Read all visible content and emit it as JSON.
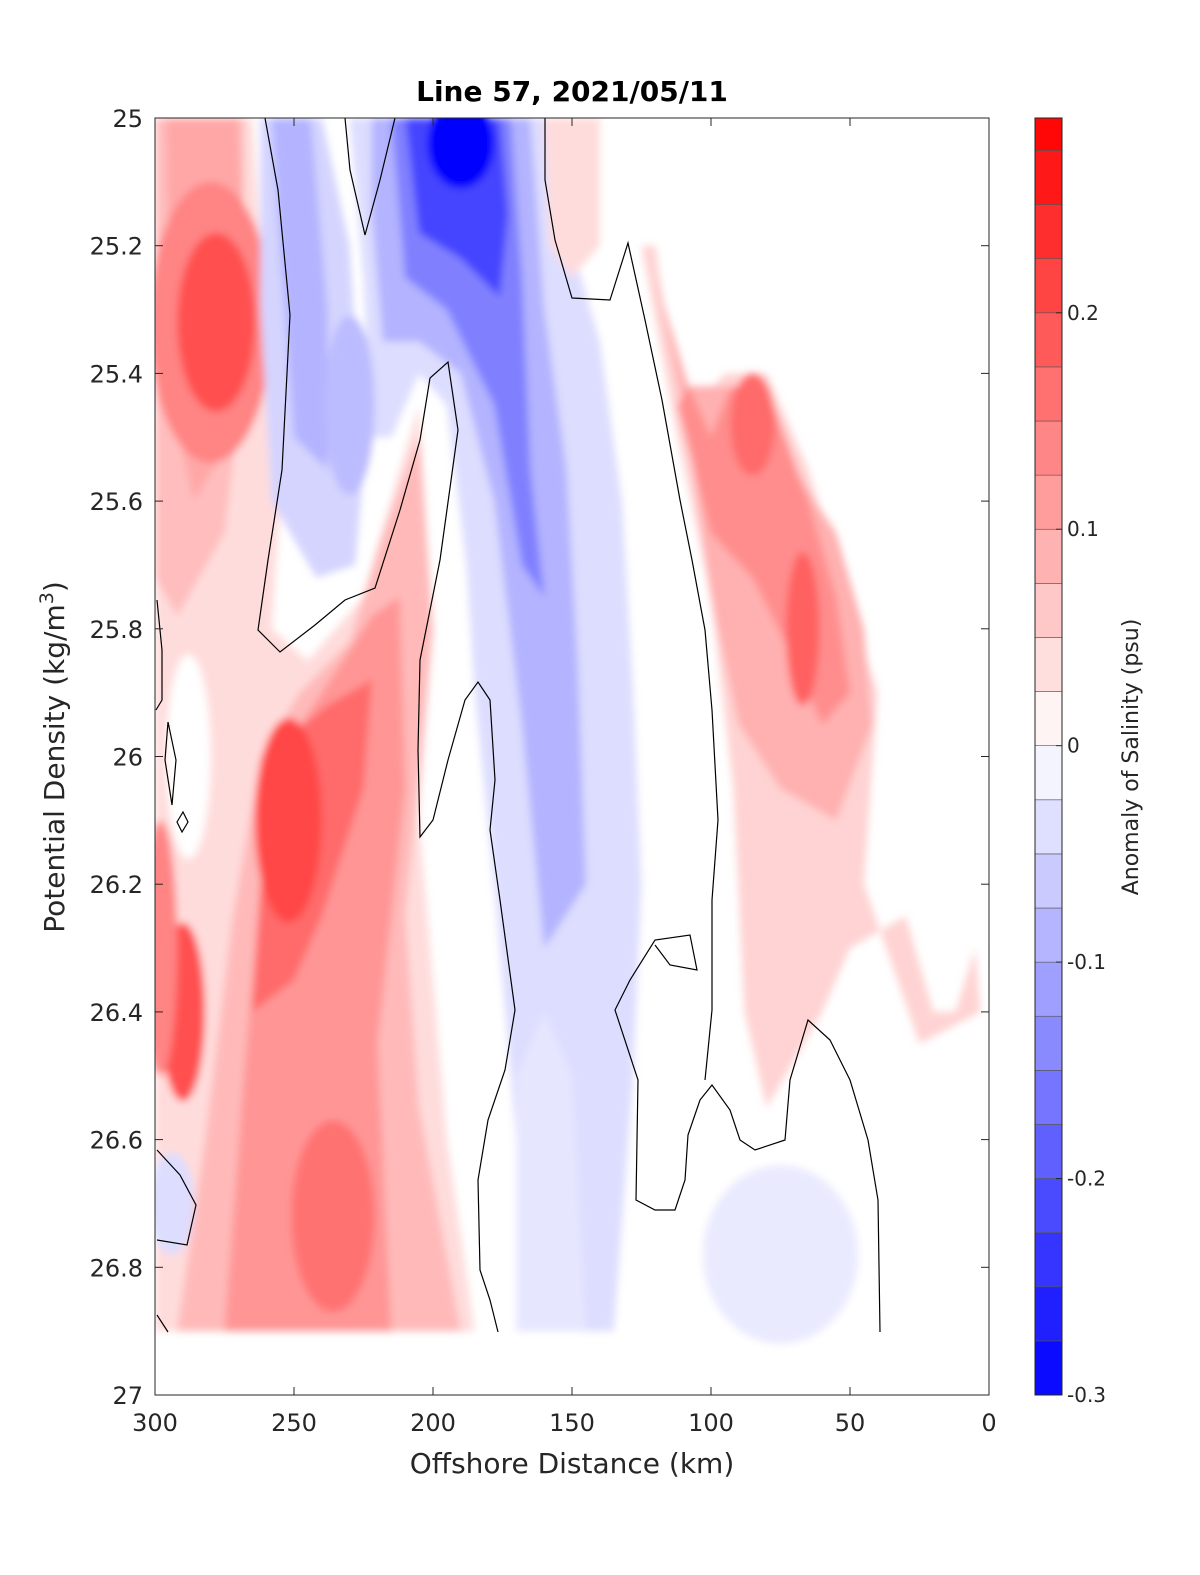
{
  "chart_data": {
    "type": "heatmap",
    "subtype": "filled-contour",
    "title": "Line 57, 2021/05/11",
    "xlabel": "Offshore Distance (km)",
    "ylabel_main": "Potential Density (kg/m",
    "ylabel_sup": "3",
    "ylabel_tail": ")",
    "xlim": [
      300,
      0
    ],
    "x_reversed": true,
    "ylim": [
      25,
      27
    ],
    "y_reversed": true,
    "xticks": [
      300,
      250,
      200,
      150,
      100,
      50,
      0
    ],
    "xtick_labels": [
      "300",
      "250",
      "200",
      "150",
      "100",
      "50",
      "0"
    ],
    "yticks": [
      25,
      25.2,
      25.4,
      25.6,
      25.8,
      26,
      26.2,
      26.4,
      26.6,
      26.8,
      27
    ],
    "ytick_labels": [
      "25",
      "25.2",
      "25.4",
      "25.6",
      "25.8",
      "26",
      "26.2",
      "26.4",
      "26.6",
      "26.8",
      "27"
    ],
    "colorbar": {
      "label": "Anomaly of Salinity (psu)",
      "range": [
        -0.3,
        0.29
      ],
      "levels": [
        -0.3,
        -0.275,
        -0.25,
        -0.225,
        -0.2,
        -0.175,
        -0.15,
        -0.125,
        -0.1,
        -0.075,
        -0.05,
        -0.025,
        0,
        0.025,
        0.05,
        0.075,
        0.1,
        0.125,
        0.15,
        0.175,
        0.2,
        0.225,
        0.25,
        0.275
      ],
      "ticks": [
        -0.3,
        -0.2,
        -0.1,
        0,
        0.1,
        0.2
      ],
      "tick_labels": [
        "-0.3",
        "-0.2",
        "-0.1",
        "0",
        "0.1",
        "0.2"
      ],
      "colormap": "blue-white-red"
    },
    "zero_contour_shown": true,
    "data_coverage": {
      "x_min": 0,
      "x_max": 300,
      "y_max": 26.9
    },
    "regions": [
      {
        "feature": "high-salinity core",
        "x": 278,
        "y": 25.32,
        "value": 0.2
      },
      {
        "feature": "high-salinity core",
        "x": 252,
        "y": 26.1,
        "value": 0.2
      },
      {
        "feature": "high-salinity core",
        "x": 290,
        "y": 26.4,
        "value": 0.2
      },
      {
        "feature": "high-salinity core",
        "x": 236,
        "y": 26.72,
        "value": 0.175
      },
      {
        "feature": "low-salinity core",
        "x": 190,
        "y": 25.05,
        "value": -0.3
      },
      {
        "feature": "low-salinity tongue",
        "x": 168,
        "y": 25.6,
        "value": -0.15
      },
      {
        "feature": "low-salinity region",
        "x": 155,
        "y": 26.2,
        "value": -0.075
      },
      {
        "feature": "saline band",
        "x": 70,
        "y": 25.6,
        "value": 0.15
      },
      {
        "feature": "weak fresh patch",
        "x": 75,
        "y": 26.78,
        "value": -0.025
      }
    ]
  }
}
